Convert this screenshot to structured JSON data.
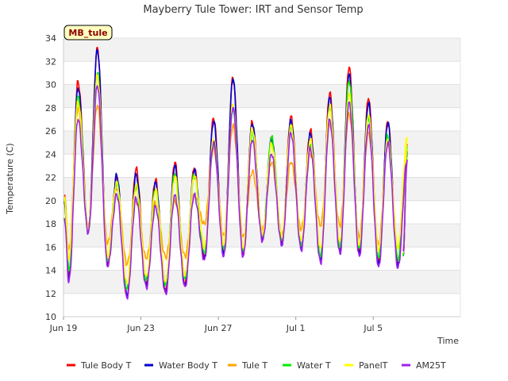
{
  "chart_data": {
    "type": "line",
    "title": "Mayberry Tule Tower: IRT and Sensor Temp",
    "xlabel": "Time",
    "ylabel": "Temperature (C)",
    "station_label": "MB_tule",
    "xlim": [
      0,
      20.5
    ],
    "ylim": [
      10,
      34
    ],
    "x_ticks": [
      {
        "x": 0,
        "label": "Jun 19"
      },
      {
        "x": 4,
        "label": "Jun 23"
      },
      {
        "x": 8,
        "label": "Jun 27"
      },
      {
        "x": 12,
        "label": "Jul 1"
      },
      {
        "x": 16,
        "label": "Jul 5"
      }
    ],
    "y_ticks": [
      10,
      12,
      14,
      16,
      18,
      20,
      22,
      24,
      26,
      28,
      30,
      32,
      34
    ],
    "x_unit": "days since Jun 19",
    "daily_extrema": {
      "days": [
        0,
        1,
        2,
        3,
        4,
        5,
        6,
        7,
        8,
        9,
        10,
        11,
        12,
        13,
        14,
        15,
        16,
        17
      ],
      "peak_time": 0.75,
      "min_time": 0.28,
      "end_x": 17.55,
      "end_value": 15.2
    },
    "series": [
      {
        "name": "Tule Body T",
        "color": "#ff0000",
        "maxima": [
          30.3,
          33.2,
          22.0,
          22.8,
          21.8,
          23.3,
          22.8,
          27.1,
          30.6,
          26.8,
          25.4,
          27.3,
          26.1,
          29.3,
          31.5,
          28.8,
          26.8,
          24.8
        ],
        "minima": [
          13.5,
          17.5,
          14.5,
          11.7,
          12.8,
          12.2,
          12.8,
          15.2,
          15.6,
          15.4,
          16.8,
          16.4,
          16.0,
          15.1,
          15.8,
          15.6,
          14.8,
          14.6
        ]
      },
      {
        "name": "Water Body T",
        "color": "#0000cc",
        "maxima": [
          29.7,
          33.0,
          22.2,
          22.3,
          21.6,
          23.0,
          22.6,
          26.8,
          30.5,
          26.6,
          25.3,
          26.9,
          25.8,
          28.9,
          30.9,
          28.4,
          26.7,
          24.2
        ],
        "minima": [
          13.2,
          17.3,
          14.4,
          11.8,
          12.7,
          12.1,
          12.7,
          15.0,
          15.5,
          15.2,
          16.6,
          16.2,
          15.8,
          14.9,
          15.5,
          15.4,
          14.5,
          14.4
        ]
      },
      {
        "name": "Tule T",
        "color": "#ffa500",
        "maxima": [
          28.0,
          28.2,
          21.0,
          19.9,
          19.8,
          20.0,
          20.5,
          24.5,
          26.5,
          22.5,
          23.3,
          23.3,
          24.0,
          26.6,
          27.5,
          25.9,
          25.0,
          24.3
        ],
        "minima": [
          15.8,
          17.7,
          16.3,
          14.5,
          15.0,
          15.1,
          15.2,
          18.0,
          17.0,
          16.9,
          17.5,
          17.0,
          17.5,
          17.8,
          17.8,
          16.8,
          16.2,
          15.9
        ]
      },
      {
        "name": "Water T",
        "color": "#00ee00",
        "maxima": [
          29.0,
          31.0,
          21.5,
          21.2,
          21.0,
          22.3,
          22.2,
          25.0,
          28.1,
          26.0,
          25.5,
          26.4,
          24.8,
          28.0,
          30.3,
          27.2,
          25.6,
          24.5
        ],
        "minima": [
          14.0,
          17.4,
          14.8,
          12.4,
          13.2,
          12.8,
          13.3,
          15.5,
          15.8,
          15.7,
          16.9,
          16.6,
          16.1,
          15.2,
          16.0,
          15.9,
          15.1,
          14.9
        ]
      },
      {
        "name": "PanelT",
        "color": "#ffff00",
        "maxima": [
          28.5,
          30.8,
          21.6,
          21.4,
          20.9,
          22.0,
          22.1,
          25.3,
          28.3,
          26.2,
          24.9,
          26.5,
          25.3,
          28.2,
          29.2,
          27.4,
          25.3,
          25.4
        ],
        "minima": [
          15.0,
          17.5,
          15.2,
          12.9,
          13.5,
          13.0,
          13.6,
          16.0,
          16.2,
          15.9,
          17.1,
          16.9,
          16.6,
          15.9,
          16.5,
          16.2,
          15.7,
          15.9
        ]
      },
      {
        "name": "AM25T",
        "color": "#a020f0",
        "maxima": [
          27.0,
          29.9,
          20.5,
          20.2,
          19.5,
          20.5,
          20.5,
          25.0,
          28.0,
          25.2,
          24.0,
          25.8,
          24.5,
          27.0,
          28.5,
          26.5,
          25.0,
          23.5
        ],
        "minima": [
          13.0,
          17.2,
          14.3,
          11.6,
          12.5,
          12.0,
          12.6,
          14.9,
          15.2,
          15.2,
          16.5,
          16.1,
          15.7,
          14.6,
          15.4,
          15.2,
          14.3,
          14.2
        ]
      }
    ],
    "legend_position": "bottom"
  }
}
